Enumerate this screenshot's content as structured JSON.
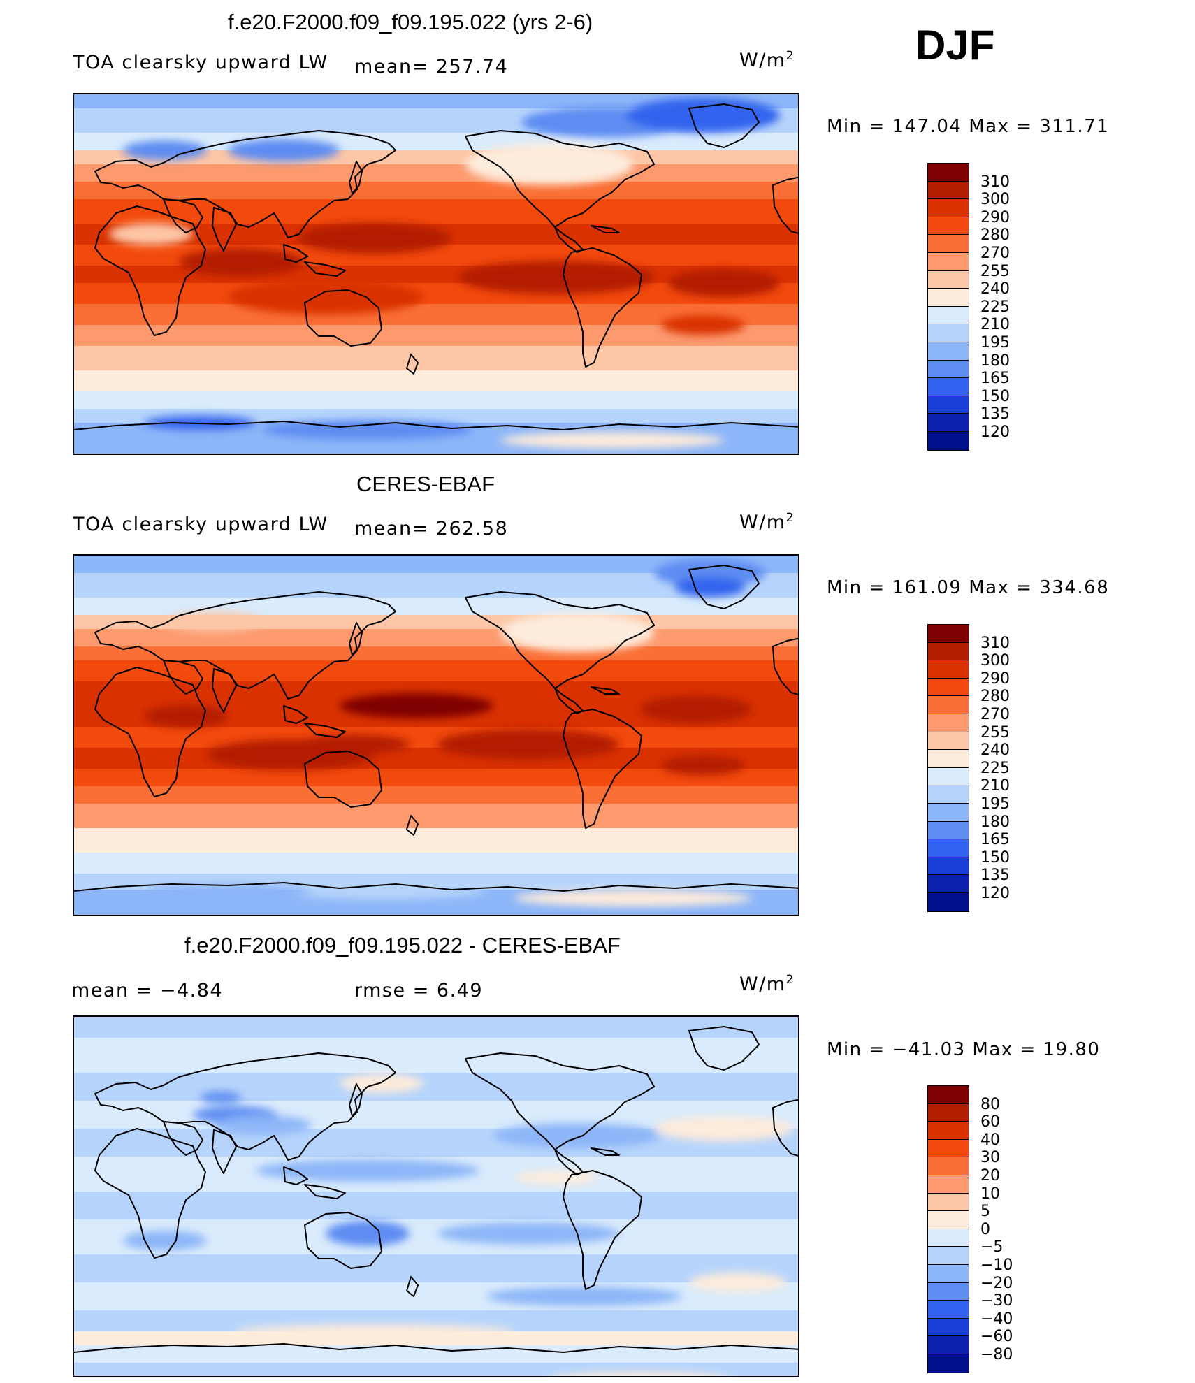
{
  "season": "DJF",
  "panels": [
    {
      "title": "f.e20.F2000.f09_f09.195.022 (yrs 2-6)",
      "left_label": "TOA clearsky upward LW",
      "stat1": "mean= 257.74",
      "units": "W/m",
      "units_exp": "2",
      "min_max": "Min  =  147.04  Max  =  311.71",
      "map_kind": "model",
      "legend_kind": "abs"
    },
    {
      "title": "CERES-EBAF",
      "left_label": "TOA clearsky upward LW",
      "stat1": "mean= 262.58",
      "units": "W/m",
      "units_exp": "2",
      "min_max": "Min  =  161.09  Max  =  334.68",
      "map_kind": "obs",
      "legend_kind": "abs"
    },
    {
      "title": "f.e20.F2000.f09_f09.195.022 - CERES-EBAF",
      "left_label": "mean =    −4.84",
      "stat1": "rmse =     6.49",
      "units": "W/m",
      "units_exp": "2",
      "min_max": "Min  =  −41.03  Max  =    19.80",
      "map_kind": "diff",
      "legend_kind": "diff"
    }
  ],
  "legends": {
    "abs": {
      "labels": [
        "310",
        "300",
        "290",
        "280",
        "270",
        "255",
        "240",
        "225",
        "210",
        "195",
        "180",
        "165",
        "150",
        "135",
        "120"
      ],
      "colors": [
        "#7f0000",
        "#b31d00",
        "#d93200",
        "#f24a0c",
        "#fa6f35",
        "#fc9a6e",
        "#fdc6a6",
        "#fdebdb",
        "#d9ebfc",
        "#b6d4fb",
        "#8db6f8",
        "#5d8cf2",
        "#3363ee",
        "#1a3fd8",
        "#0a22ad",
        "#00108a"
      ]
    },
    "diff": {
      "labels": [
        "80",
        "60",
        "40",
        "30",
        "20",
        "10",
        "5",
        "0",
        "−5",
        "−10",
        "−20",
        "−30",
        "−40",
        "−60",
        "−80"
      ],
      "colors": [
        "#7f0000",
        "#b31d00",
        "#d93200",
        "#f24a0c",
        "#fa6f35",
        "#fc9a6e",
        "#fdc6a6",
        "#fdebdb",
        "#d9ebfc",
        "#b6d4fb",
        "#8db6f8",
        "#5d8cf2",
        "#3363ee",
        "#1a3fd8",
        "#0a22ad",
        "#00108a"
      ]
    }
  }
}
